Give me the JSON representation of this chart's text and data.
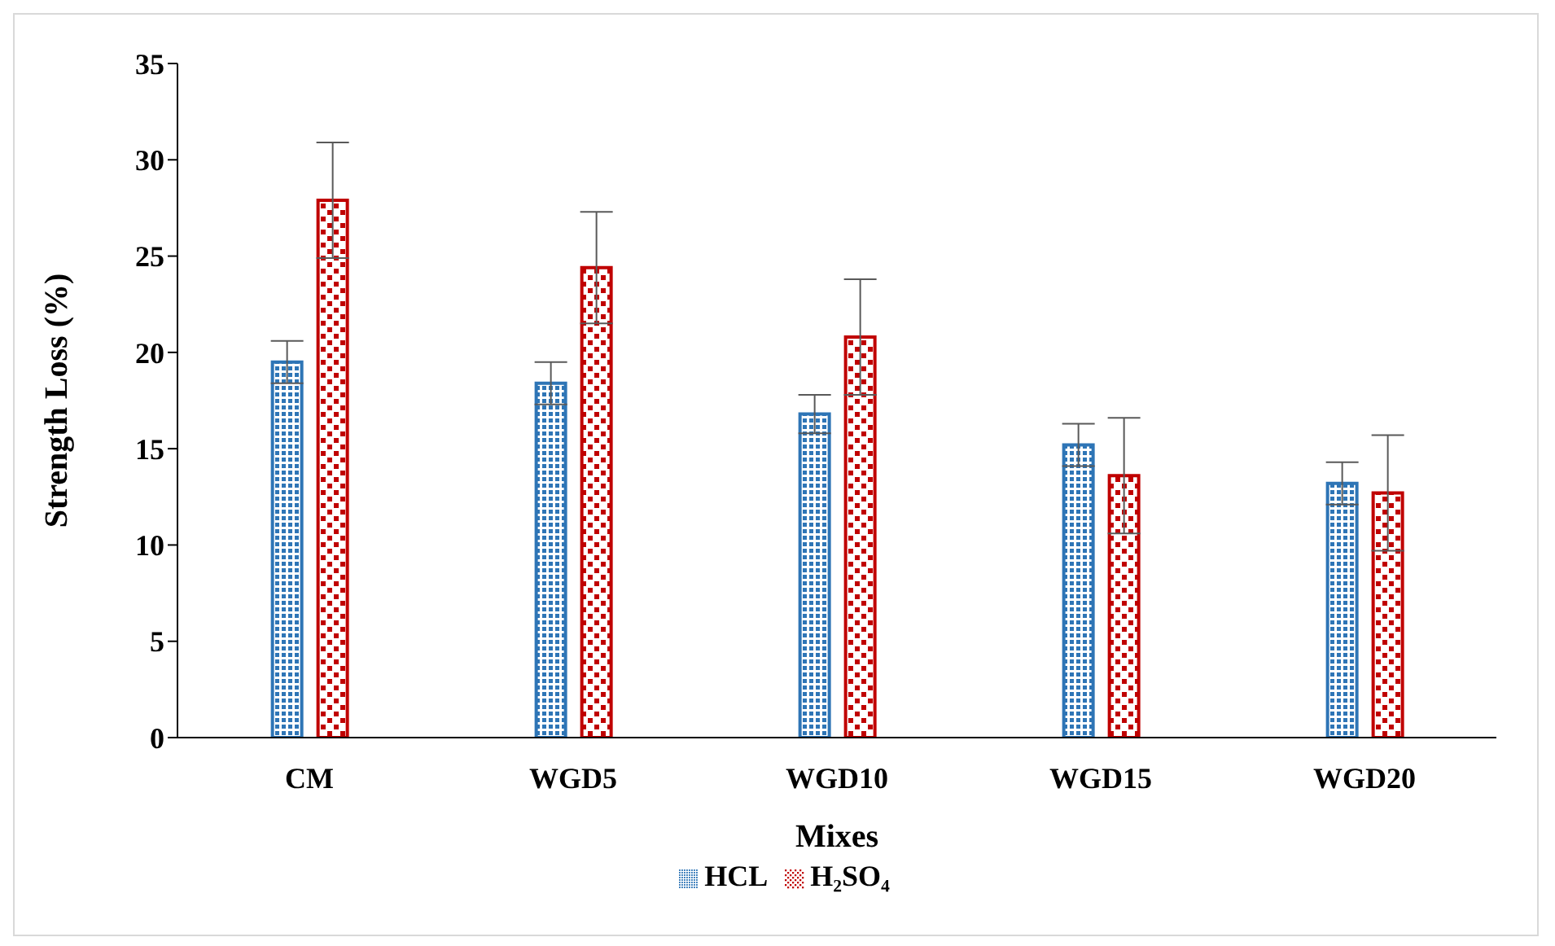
{
  "chart_data": {
    "type": "bar",
    "xlabel": "Mixes",
    "ylabel": "Strength Loss (%)",
    "categories": [
      "CM",
      "WGD5",
      "WGD10",
      "WGD15",
      "WGD20"
    ],
    "series": [
      {
        "name": "HCL",
        "color": "#2e75b6",
        "values": [
          19.5,
          18.4,
          16.8,
          15.2,
          13.2
        ],
        "errors": [
          1.1,
          1.1,
          1.0,
          1.1,
          1.1
        ]
      },
      {
        "name": "H₂SO₄",
        "color": "#c00000",
        "values": [
          27.9,
          24.4,
          20.8,
          13.6,
          12.7
        ],
        "errors": [
          3.0,
          2.9,
          3.0,
          3.0,
          3.0
        ]
      }
    ],
    "ylim": [
      0,
      35
    ],
    "yticks": [
      0,
      5,
      10,
      15,
      20,
      25,
      30,
      35
    ],
    "grid": false,
    "legend": "bottom"
  }
}
